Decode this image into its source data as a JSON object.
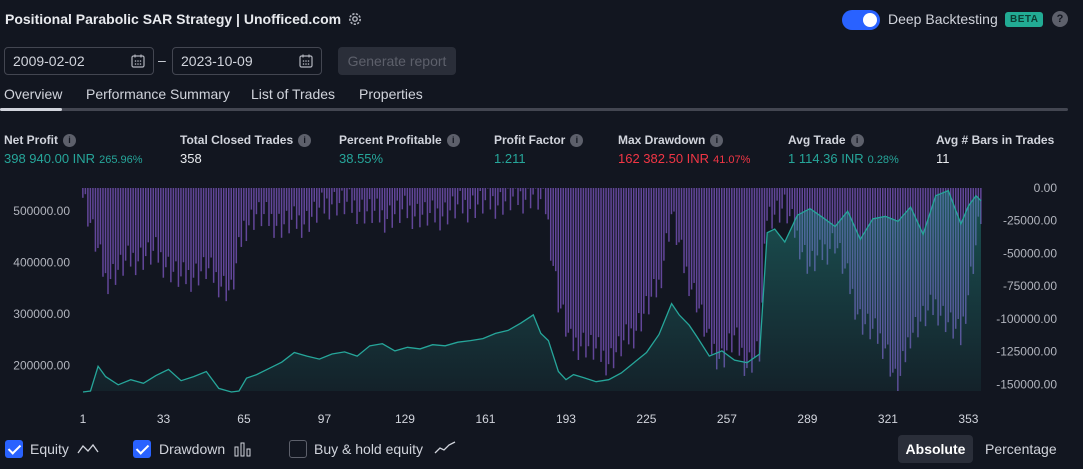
{
  "header": {
    "title": "Positional Parabolic SAR Strategy | Unofficed.com",
    "deep_backtesting_label": "Deep Backtesting",
    "beta_badge": "BETA",
    "help": "?"
  },
  "dates": {
    "from": "2009-02-02",
    "separator": "–",
    "to": "2023-10-09",
    "generate_label": "Generate report"
  },
  "tabs": [
    {
      "label": "Overview",
      "active": true
    },
    {
      "label": "Performance Summary",
      "active": false
    },
    {
      "label": "List of Trades",
      "active": false
    },
    {
      "label": "Properties",
      "active": false
    }
  ],
  "metrics": [
    {
      "label": "Net Profit",
      "value": "398 940.00 INR",
      "sub": "265.96%",
      "color": "#26a69a"
    },
    {
      "label": "Total Closed Trades",
      "value": "358",
      "sub": "",
      "color": "#e8eaee"
    },
    {
      "label": "Percent Profitable",
      "value": "38.55%",
      "sub": "",
      "color": "#26a69a"
    },
    {
      "label": "Profit Factor",
      "value": "1.211",
      "sub": "",
      "color": "#26a69a"
    },
    {
      "label": "Max Drawdown",
      "value": "162 382.50 INR",
      "sub": "41.07%",
      "color": "#f23645"
    },
    {
      "label": "Avg Trade",
      "value": "1 114.36 INR",
      "sub": "0.28%",
      "color": "#26a69a"
    },
    {
      "label": "Avg # Bars in Trades",
      "value": "11",
      "sub": "",
      "color": "#e8eaee"
    }
  ],
  "chart_data": {
    "type": "area",
    "x_ticks": [
      "1",
      "33",
      "65",
      "97",
      "129",
      "161",
      "193",
      "225",
      "257",
      "289",
      "321",
      "353"
    ],
    "y_left_ticks": [
      "500000.00",
      "400000.00",
      "300000.00",
      "200000.00"
    ],
    "y_right_ticks": [
      "0.00",
      "-25000.00",
      "-50000.00",
      "-75000.00",
      "-100000.00",
      "-125000.00",
      "-150000.00"
    ],
    "series": [
      {
        "name": "Equity",
        "color": "#26a69a",
        "x": [
          1,
          4,
          7,
          10,
          15,
          20,
          25,
          30,
          35,
          40,
          45,
          50,
          55,
          60,
          63,
          66,
          70,
          75,
          80,
          85,
          90,
          95,
          100,
          105,
          110,
          115,
          120,
          125,
          130,
          135,
          140,
          145,
          150,
          155,
          160,
          165,
          170,
          175,
          180,
          183,
          186,
          190,
          193,
          196,
          200,
          205,
          210,
          215,
          220,
          225,
          230,
          235,
          238,
          242,
          245,
          250,
          255,
          260,
          265,
          270,
          273,
          276,
          280,
          285,
          290,
          295,
          300,
          305,
          310,
          315,
          320,
          325,
          330,
          335,
          340,
          345,
          350,
          353,
          356,
          358
        ],
        "values": [
          148000,
          150000,
          198000,
          178000,
          162000,
          172000,
          165000,
          180000,
          192000,
          170000,
          178000,
          188000,
          155000,
          148000,
          150000,
          175000,
          182000,
          194000,
          206000,
          225000,
          218000,
          212000,
          222000,
          226000,
          218000,
          238000,
          242000,
          228000,
          235000,
          232000,
          240000,
          238000,
          245000,
          248000,
          252000,
          262000,
          268000,
          282000,
          298000,
          262000,
          248000,
          188000,
          172000,
          182000,
          176000,
          168000,
          172000,
          185000,
          205000,
          225000,
          260000,
          320000,
          298000,
          278000,
          256000,
          218000,
          228000,
          210000,
          205000,
          222000,
          458000,
          465000,
          440000,
          492000,
          505000,
          488000,
          470000,
          500000,
          445000,
          485000,
          490000,
          480000,
          508000,
          455000,
          530000,
          540000,
          475000,
          510000,
          530000,
          520000
        ]
      },
      {
        "name": "Drawdown",
        "color": "#7e57c2",
        "x": [
          1,
          10,
          20,
          30,
          40,
          50,
          60,
          65,
          70,
          80,
          90,
          100,
          110,
          120,
          130,
          140,
          150,
          160,
          170,
          180,
          185,
          190,
          195,
          200,
          210,
          220,
          230,
          235,
          240,
          245,
          250,
          255,
          260,
          265,
          270,
          273,
          280,
          290,
          300,
          310,
          320,
          325,
          330,
          340,
          350,
          358
        ],
        "values": [
          -5000,
          -70000,
          -55000,
          -50000,
          -70000,
          -62000,
          -80000,
          -30000,
          -20000,
          -28000,
          -25000,
          -10000,
          -15000,
          -22000,
          -18000,
          -22000,
          -15000,
          -12000,
          -10000,
          -5000,
          -15000,
          -85000,
          -120000,
          -118000,
          -132000,
          -110000,
          -75000,
          -20000,
          -60000,
          -85000,
          -120000,
          -130000,
          -115000,
          -135000,
          -125000,
          -20000,
          -15000,
          -60000,
          -40000,
          -100000,
          -120000,
          -155000,
          -110000,
          -90000,
          -115000,
          -20000
        ]
      }
    ],
    "left_ylim": [
      150000,
      545000
    ],
    "right_ylim": [
      -155000,
      0
    ],
    "xlim": [
      1,
      358
    ],
    "legend": "bottom-left"
  },
  "legend": {
    "equity_label": "Equity",
    "drawdown_label": "Drawdown",
    "buyhold_label": "Buy & hold equity",
    "absolute_label": "Absolute",
    "percentage_label": "Percentage"
  }
}
